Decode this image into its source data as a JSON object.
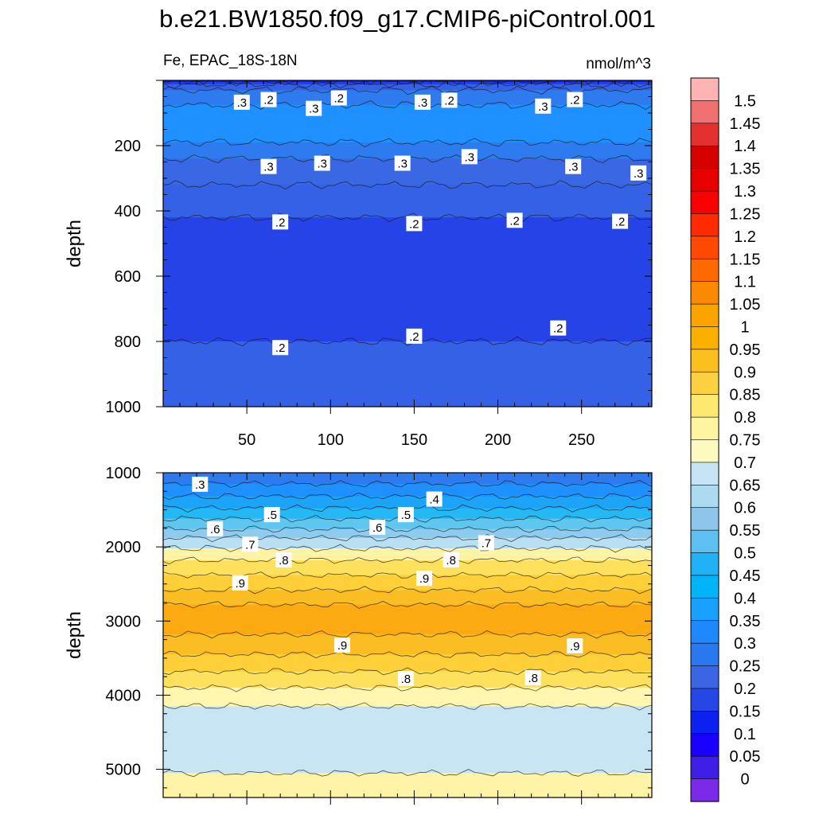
{
  "chart_data": {
    "type": "contour",
    "title": "b.e21.BW1850.f09_g17.CMIP6-piControl.001",
    "left_string": "Fe, EPAC_18S-18N",
    "right_string": "nmol/m^3",
    "panels": [
      {
        "name": "upper",
        "ylabel": "depth",
        "ylim": [
          1000,
          0
        ],
        "xlim": [
          0,
          292
        ],
        "x_ticks": [
          50,
          100,
          150,
          200,
          250
        ],
        "y_ticks": [
          200,
          400,
          600,
          800,
          1000
        ],
        "bands": [
          {
            "from": 0,
            "to": 5,
            "color": "#0c21f0"
          },
          {
            "from": 5,
            "to": 12,
            "color": "#253fe6"
          },
          {
            "from": 12,
            "to": 30,
            "color": "#3561e5"
          },
          {
            "from": 30,
            "to": 75,
            "color": "#2e7bf0"
          },
          {
            "from": 75,
            "to": 190,
            "color": "#1e90ff"
          },
          {
            "from": 190,
            "to": 240,
            "color": "#2e7bf0"
          },
          {
            "from": 240,
            "to": 320,
            "color": "#3a67e3"
          },
          {
            "from": 320,
            "to": 420,
            "color": "#3461e5"
          },
          {
            "from": 420,
            "to": 800,
            "color": "#2543e6"
          },
          {
            "from": 800,
            "to": 1000,
            "color": "#3461e5"
          }
        ],
        "contour_labels": [
          {
            "x": 47,
            "depth": 68,
            "text": ".3"
          },
          {
            "x": 63,
            "depth": 60,
            "text": ".2"
          },
          {
            "x": 90,
            "depth": 87,
            "text": ".3"
          },
          {
            "x": 105,
            "depth": 55,
            "text": ".2"
          },
          {
            "x": 155,
            "depth": 68,
            "text": ".3"
          },
          {
            "x": 171,
            "depth": 62,
            "text": ".2"
          },
          {
            "x": 227,
            "depth": 80,
            "text": ".3"
          },
          {
            "x": 246,
            "depth": 60,
            "text": ".2"
          },
          {
            "x": 63,
            "depth": 265,
            "text": ".3"
          },
          {
            "x": 95,
            "depth": 255,
            "text": ".3"
          },
          {
            "x": 143,
            "depth": 255,
            "text": ".3"
          },
          {
            "x": 183,
            "depth": 235,
            "text": ".3"
          },
          {
            "x": 245,
            "depth": 265,
            "text": ".3"
          },
          {
            "x": 284,
            "depth": 285,
            "text": ".3"
          },
          {
            "x": 70,
            "depth": 435,
            "text": ".2"
          },
          {
            "x": 150,
            "depth": 440,
            "text": ".2"
          },
          {
            "x": 210,
            "depth": 430,
            "text": ".2"
          },
          {
            "x": 273,
            "depth": 433,
            "text": ".2"
          },
          {
            "x": 70,
            "depth": 820,
            "text": ".2"
          },
          {
            "x": 150,
            "depth": 785,
            "text": ".2"
          },
          {
            "x": 236,
            "depth": 760,
            "text": ".2"
          }
        ]
      },
      {
        "name": "lower",
        "ylabel": "depth",
        "ylim": [
          5380,
          1000
        ],
        "xlim": [
          0,
          292
        ],
        "x_ticks": [
          50,
          100,
          150,
          200,
          250
        ],
        "y_ticks": [
          1000,
          2000,
          3000,
          4000,
          5000
        ],
        "bands": [
          {
            "from": 1000,
            "to": 1150,
            "color": "#2e7bf0"
          },
          {
            "from": 1150,
            "to": 1320,
            "color": "#1e90ff"
          },
          {
            "from": 1320,
            "to": 1480,
            "color": "#1ca4f8"
          },
          {
            "from": 1480,
            "to": 1620,
            "color": "#24b8f4"
          },
          {
            "from": 1620,
            "to": 1760,
            "color": "#5fc6f0"
          },
          {
            "from": 1760,
            "to": 1880,
            "color": "#8fcbee"
          },
          {
            "from": 1880,
            "to": 2020,
            "color": "#b8dff2"
          },
          {
            "from": 2020,
            "to": 2180,
            "color": "#fff3a6"
          },
          {
            "from": 2180,
            "to": 2380,
            "color": "#fde15c"
          },
          {
            "from": 2380,
            "to": 2580,
            "color": "#fdcf38"
          },
          {
            "from": 2580,
            "to": 2780,
            "color": "#fbbd24"
          },
          {
            "from": 2780,
            "to": 3180,
            "color": "#fbaa12"
          },
          {
            "from": 3180,
            "to": 3450,
            "color": "#fbbd24"
          },
          {
            "from": 3450,
            "to": 3680,
            "color": "#fdcf38"
          },
          {
            "from": 3680,
            "to": 3900,
            "color": "#fde15c"
          },
          {
            "from": 3900,
            "to": 4150,
            "color": "#fff6b0"
          },
          {
            "from": 4150,
            "to": 5050,
            "color": "#c8e5f3"
          },
          {
            "from": 5050,
            "to": 5380,
            "color": "#fff3a6"
          }
        ],
        "contour_labels": [
          {
            "x": 22,
            "depth": 1160,
            "text": ".3"
          },
          {
            "x": 162,
            "depth": 1360,
            "text": ".4"
          },
          {
            "x": 65,
            "depth": 1570,
            "text": ".5"
          },
          {
            "x": 145,
            "depth": 1570,
            "text": ".5"
          },
          {
            "x": 31,
            "depth": 1760,
            "text": ".6"
          },
          {
            "x": 128,
            "depth": 1740,
            "text": ".6"
          },
          {
            "x": 52,
            "depth": 1970,
            "text": ".7"
          },
          {
            "x": 193,
            "depth": 1950,
            "text": ".7"
          },
          {
            "x": 72,
            "depth": 2180,
            "text": ".8"
          },
          {
            "x": 172,
            "depth": 2180,
            "text": ".8"
          },
          {
            "x": 46,
            "depth": 2490,
            "text": ".9"
          },
          {
            "x": 156,
            "depth": 2430,
            "text": ".9"
          },
          {
            "x": 107,
            "depth": 3330,
            "text": ".9"
          },
          {
            "x": 246,
            "depth": 3340,
            "text": ".9"
          },
          {
            "x": 145,
            "depth": 3780,
            "text": ".8"
          },
          {
            "x": 221,
            "depth": 3770,
            "text": ".8"
          }
        ]
      }
    ],
    "colorbar": {
      "labels": [
        "1.5",
        "1.45",
        "1.4",
        "1.35",
        "1.3",
        "1.25",
        "1.2",
        "1.15",
        "1.1",
        "1.05",
        "1",
        "0.95",
        "0.9",
        "0.85",
        "0.8",
        "0.75",
        "0.7",
        "0.65",
        "0.6",
        "0.55",
        "0.5",
        "0.45",
        "0.4",
        "0.35",
        "0.3",
        "0.25",
        "0.2",
        "0.15",
        "0.1",
        "0.05",
        "0"
      ],
      "colors": [
        "#ffb3b3",
        "#f07070",
        "#e53030",
        "#d60000",
        "#e80000",
        "#fa0000",
        "#ff2a00",
        "#ff4a00",
        "#ff6a00",
        "#fb8a00",
        "#fba400",
        "#fbb000",
        "#fbc01e",
        "#fdd040",
        "#fde870",
        "#fff5a0",
        "#fdfac0",
        "#c6e4f3",
        "#acdaf0",
        "#8dc6ea",
        "#5dc0f0",
        "#20b0f5",
        "#00b4fa",
        "#1aa0ff",
        "#1e88ff",
        "#2a78f0",
        "#3a66e6",
        "#2646e6",
        "#0c21f0",
        "#1a00ff",
        "#3f1ee6",
        "#7a2ae8"
      ]
    }
  }
}
